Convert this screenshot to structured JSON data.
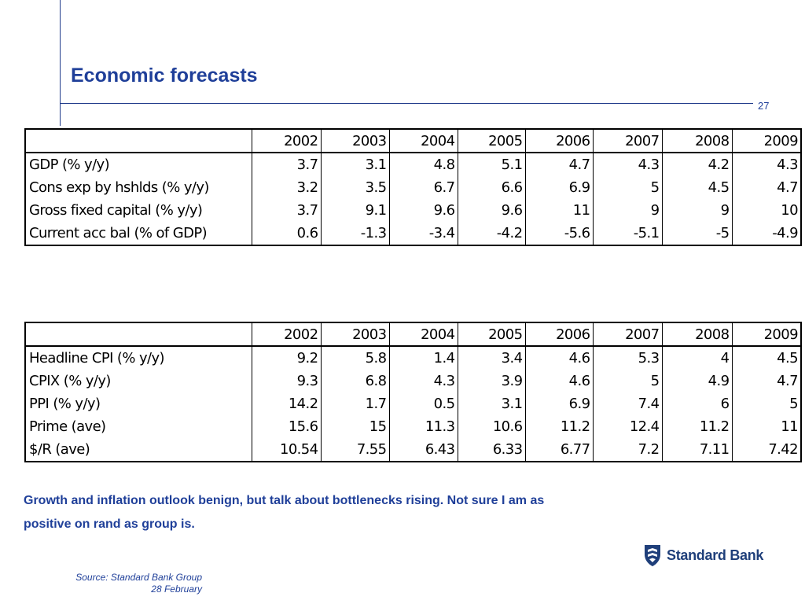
{
  "title": "Economic forecasts",
  "page_number": "27",
  "table1": {
    "years": [
      "2002",
      "2003",
      "2004",
      "2005",
      "2006",
      "2007",
      "2008",
      "2009"
    ],
    "rows": [
      {
        "label": "GDP (% y/y)",
        "values": [
          "3.7",
          "3.1",
          "4.8",
          "5.1",
          "4.7",
          "4.3",
          "4.2",
          "4.3"
        ]
      },
      {
        "label": "Cons exp by hshlds (% y/y)",
        "values": [
          "3.2",
          "3.5",
          "6.7",
          "6.6",
          "6.9",
          "5",
          "4.5",
          "4.7"
        ]
      },
      {
        "label": "Gross fixed capital  (% y/y)",
        "values": [
          "3.7",
          "9.1",
          "9.6",
          "9.6",
          "11",
          "9",
          "9",
          "10"
        ]
      },
      {
        "label": "Current acc bal (% of GDP)",
        "values": [
          "0.6",
          "-1.3",
          "-3.4",
          "-4.2",
          "-5.6",
          "-5.1",
          "-5",
          "-4.9"
        ]
      }
    ]
  },
  "table2": {
    "years": [
      "2002",
      "2003",
      "2004",
      "2005",
      "2006",
      "2007",
      "2008",
      "2009"
    ],
    "rows": [
      {
        "label": "Headline CPI (% y/y)",
        "values": [
          "9.2",
          "5.8",
          "1.4",
          "3.4",
          "4.6",
          "5.3",
          "4",
          "4.5"
        ]
      },
      {
        "label": "CPIX (% y/y)",
        "values": [
          "9.3",
          "6.8",
          "4.3",
          "3.9",
          "4.6",
          "5",
          "4.9",
          "4.7"
        ]
      },
      {
        "label": "PPI (% y/y)",
        "values": [
          "14.2",
          "1.7",
          "0.5",
          "3.1",
          "6.9",
          "7.4",
          "6",
          "5"
        ]
      },
      {
        "label": "Prime (ave)",
        "values": [
          "15.6",
          "15",
          "11.3",
          "10.6",
          "11.2",
          "12.4",
          "11.2",
          "11"
        ]
      },
      {
        "label": "$/R (ave)",
        "values": [
          "10.54",
          "7.55",
          "6.43",
          "6.33",
          "6.77",
          "7.2",
          "7.11",
          "7.42"
        ]
      }
    ]
  },
  "comment_line1": "Growth and inflation outlook benign, but talk about bottlenecks rising. Not sure I am as",
  "comment_line2": "positive on rand as group is.",
  "logo_text": "Standard Bank",
  "source_line1": "Source: Standard Bank Group",
  "source_line2": "28 February",
  "colors": {
    "accent": "#1f3f99",
    "rule": "#1f3a8a"
  }
}
